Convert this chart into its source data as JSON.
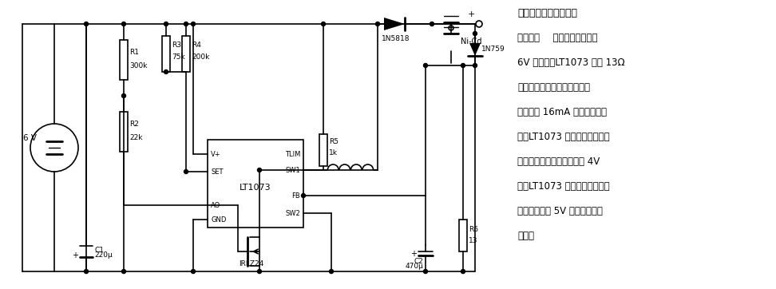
{
  "bg_color": "#ffffff",
  "line_color": "#000000",
  "desc_lines": [
    "用太阳能电池的镍镉电",
    "池充电器    太阳能电池板提供",
    "6V 的电压，LT1073 经由 13Ω",
    "电阻检测充电电流，在镍镉电",
    "池中维持 16mA 的固定充电电",
    "流。LT1073 内的低电压测定器",
    "在太阳能板的输出电压降到 4V",
    "时，LT1073 将关断充电电路；",
    "而当电压升到 5V 时又可对电池",
    "充电。"
  ],
  "desc_bold_first": true
}
